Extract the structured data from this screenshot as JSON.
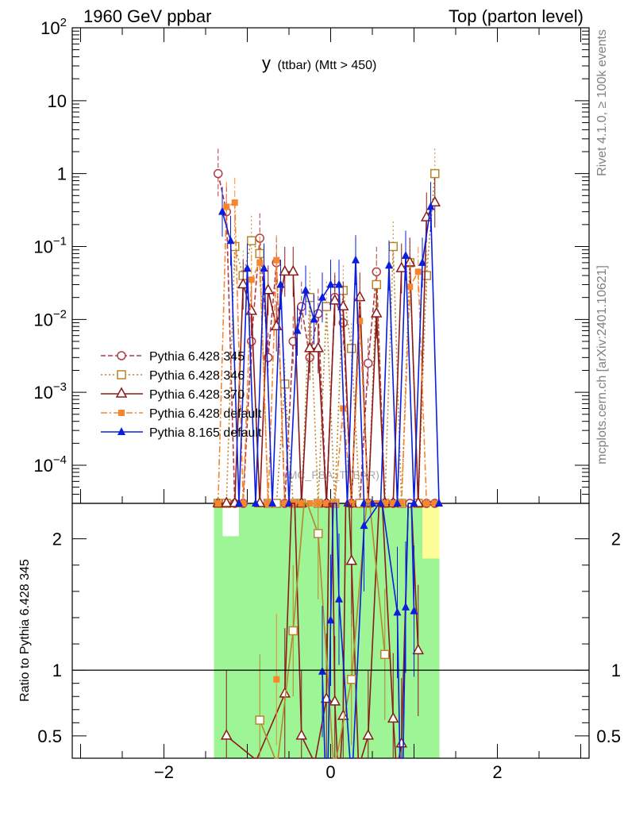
{
  "header": {
    "left": "1960 GeV ppbar",
    "right": "Top (parton level)"
  },
  "side_texts": {
    "rivet": "Rivet 4.1.0, ≥ 100k events",
    "mcplots": "mcplots.cern.ch [arXiv:2401.10621]"
  },
  "chart_data": {
    "type": "line",
    "title_main": "y",
    "title_sub": "(ttbar) (Mtt > 450)",
    "watermark": "(MC_FBA_TTBAR)",
    "xlim": [
      -3.1,
      3.1
    ],
    "x_ticks": [
      -2,
      0,
      2
    ],
    "x_tick_labels": [
      "−2",
      "0",
      "2"
    ],
    "top": {
      "yscale": "log",
      "ylim": [
        3e-05,
        100
      ],
      "y_ticks": [
        {
          "value": 100,
          "base": "10",
          "exp": "2"
        },
        {
          "value": 10,
          "base": "10",
          "exp": ""
        },
        {
          "value": 1,
          "base": "1",
          "exp": ""
        },
        {
          "value": 0.1,
          "base": "10",
          "exp": "−1"
        },
        {
          "value": 0.01,
          "base": "10",
          "exp": "−2"
        },
        {
          "value": 0.001,
          "base": "10",
          "exp": "−3"
        },
        {
          "value": 0.0001,
          "base": "10",
          "exp": "−4"
        }
      ]
    },
    "ratio": {
      "ylabel": "Ratio to Pythia 6.428 345",
      "ylim": [
        0.33,
        2.27
      ],
      "y_ticks": [
        0.5,
        1,
        2
      ],
      "y_tick_labels": [
        "0.5",
        "1",
        "2"
      ],
      "reference_line": 1
    },
    "series": [
      {
        "name": "Pythia 6.428 345",
        "color": "#b03a48",
        "marker": "circle-open",
        "dash": "6,3",
        "x": [
          -1.35,
          -1.25,
          -1.15,
          -1.05,
          -0.95,
          -0.85,
          -0.75,
          -0.65,
          -0.55,
          -0.45,
          -0.35,
          -0.25,
          -0.15,
          -0.05,
          0.05,
          0.15,
          0.25,
          0.35,
          0.45,
          0.55,
          0.65,
          0.75,
          0.85,
          0.95,
          1.05,
          1.15,
          1.25
        ],
        "y": [
          1.0,
          0.3,
          3e-05,
          3e-05,
          0.005,
          0.13,
          0.003,
          0.06,
          3e-05,
          0.005,
          0.015,
          0.003,
          0.012,
          3e-05,
          0.02,
          0.009,
          3e-05,
          3e-05,
          0.0025,
          0.045,
          3e-05,
          3e-05,
          3e-05,
          3e-05,
          3e-05,
          3e-05,
          3e-05
        ]
      },
      {
        "name": "Pythia 6.428 346",
        "color": "#b8862b",
        "marker": "square-open",
        "dash": "2,3",
        "x": [
          -1.35,
          -1.25,
          -1.15,
          -1.05,
          -0.95,
          -0.85,
          -0.75,
          -0.65,
          -0.55,
          -0.45,
          -0.35,
          -0.25,
          -0.15,
          -0.05,
          0.05,
          0.15,
          0.25,
          0.35,
          0.45,
          0.55,
          0.65,
          0.75,
          0.85,
          0.95,
          1.05,
          1.15,
          1.25
        ],
        "y": [
          3e-05,
          3e-05,
          0.1,
          0.04,
          0.12,
          0.08,
          3e-05,
          3e-05,
          0.0013,
          3e-05,
          3e-05,
          0.02,
          3e-05,
          0.015,
          3e-05,
          0.025,
          0.004,
          3e-05,
          3e-05,
          0.03,
          3e-05,
          0.1,
          3e-05,
          0.06,
          3e-05,
          0.04,
          1.0
        ]
      },
      {
        "name": "Pythia 6.428 370",
        "color": "#8b1a1a",
        "marker": "triangle-open",
        "dash": "",
        "x": [
          -1.35,
          -1.25,
          -1.15,
          -1.05,
          -0.95,
          -0.85,
          -0.75,
          -0.65,
          -0.55,
          -0.45,
          -0.35,
          -0.25,
          -0.15,
          -0.05,
          0.05,
          0.15,
          0.25,
          0.35,
          0.45,
          0.55,
          0.65,
          0.75,
          0.85,
          0.95,
          1.05,
          1.15,
          1.25
        ],
        "y": [
          3e-05,
          3e-05,
          3e-05,
          0.03,
          0.013,
          3e-05,
          0.025,
          0.008,
          0.045,
          0.045,
          3e-05,
          0.004,
          0.004,
          3e-05,
          0.018,
          0.015,
          3e-05,
          0.02,
          3e-05,
          0.012,
          3e-05,
          3e-05,
          0.05,
          0.06,
          3e-05,
          0.25,
          0.4
        ]
      },
      {
        "name": "Pythia 6.428 default",
        "color": "#f5862e",
        "marker": "square-filled",
        "dash": "8,3,2,3",
        "x": [
          -1.35,
          -1.25,
          -1.15,
          -1.05,
          -0.95,
          -0.85,
          -0.75,
          -0.65,
          -0.55,
          -0.45,
          -0.35,
          -0.25,
          -0.15,
          -0.05,
          0.05,
          0.15,
          0.25,
          0.35,
          0.45,
          0.55,
          0.65,
          0.75,
          0.85,
          0.95,
          1.05,
          1.15,
          1.25
        ],
        "y": [
          3e-05,
          0.35,
          0.4,
          3e-05,
          0.035,
          0.06,
          3e-05,
          0.065,
          3e-05,
          3e-05,
          3e-05,
          3e-05,
          3e-05,
          3e-05,
          3e-05,
          0.0006,
          3e-05,
          0.0095,
          3e-05,
          3e-05,
          3e-05,
          3e-05,
          3e-05,
          0.028,
          0.045,
          3e-05,
          3e-05
        ]
      },
      {
        "name": "Pythia 8.165 default",
        "color": "#0a1edc",
        "marker": "triangle-filled",
        "dash": "",
        "x": [
          -1.3,
          -1.2,
          -1.1,
          -1.0,
          -0.9,
          -0.8,
          -0.7,
          -0.6,
          -0.5,
          -0.4,
          -0.3,
          -0.2,
          -0.1,
          0.0,
          0.1,
          0.2,
          0.3,
          0.4,
          0.5,
          0.6,
          0.7,
          0.8,
          0.9,
          1.0,
          1.1,
          1.2,
          1.3
        ],
        "y": [
          0.3,
          0.12,
          3e-05,
          0.05,
          3e-05,
          0.05,
          3e-05,
          0.03,
          3e-05,
          0.007,
          0.025,
          0.01,
          0.02,
          0.03,
          0.03,
          3e-05,
          0.065,
          3e-05,
          3e-05,
          3e-05,
          0.055,
          3e-05,
          0.075,
          3e-05,
          0.06,
          0.35,
          3e-05
        ]
      }
    ],
    "ratio_series": [
      {
        "name": "Pythia 6.428 370",
        "color": "#8b1a1a",
        "marker": "triangle-open",
        "x": [
          -1.25,
          -0.55,
          -0.35,
          -0.05,
          0.05,
          0.15,
          0.25,
          0.45,
          0.75,
          0.85,
          1.05
        ],
        "y": [
          0.5,
          0.82,
          0.5,
          0.78,
          0.76,
          0.65,
          1.83,
          0.5,
          0.63,
          0.44,
          1.15
        ]
      },
      {
        "name": "Pythia 6.428 346",
        "color": "#b8862b",
        "marker": "square-open",
        "x": [
          -0.85,
          -0.45,
          -0.15,
          0.25,
          0.65
        ],
        "y": [
          0.62,
          1.3,
          2.04,
          0.93,
          1.12
        ]
      },
      {
        "name": "Pythia 6.428 default",
        "color": "#f5862e",
        "marker": "square-filled",
        "x": [
          -0.65
        ],
        "y": [
          0.93
        ]
      },
      {
        "name": "Pythia 8.165 default",
        "color": "#0a1edc",
        "marker": "triangle-filled",
        "x": [
          -0.1,
          0.0,
          0.1,
          0.4,
          0.8,
          0.9,
          1.0
        ],
        "y": [
          0.99,
          1.38,
          1.54,
          2.1,
          1.44,
          1.48,
          1.45
        ]
      }
    ],
    "bands": {
      "green": "#9df595",
      "yellow": "#fdfd98",
      "x_range": [
        -1.4,
        1.3
      ],
      "green_heights_ratio": [
        2.27,
        2.27,
        2.27,
        2.27,
        2.27,
        2.27,
        2.27,
        2.27,
        2.27,
        2.27,
        2.27,
        2.27,
        2.27,
        2.27,
        2.27,
        2.27,
        2.27,
        2.27,
        2.27,
        2.27,
        2.27,
        2.27,
        2.27,
        2.27,
        2.27,
        1.85,
        1.85
      ],
      "yellow_top": [
        2.27,
        1.95,
        1.82,
        2.27,
        2.27,
        2.27,
        2.27,
        2.27,
        2.27,
        2.27,
        2.27,
        2.27,
        2.27,
        2.27,
        2.27,
        2.27,
        2.27,
        2.27,
        2.27,
        2.27,
        2.27,
        2.27,
        2.27,
        2.27,
        2.27,
        2.27,
        2.27
      ]
    }
  }
}
